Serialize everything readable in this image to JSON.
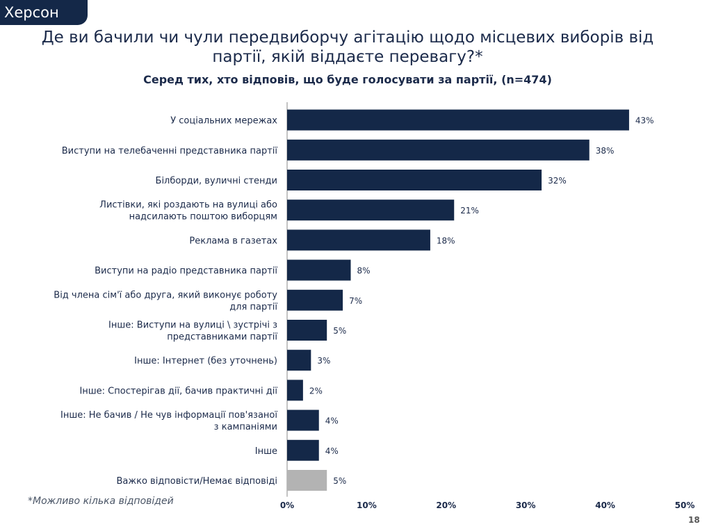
{
  "region": "Херсон",
  "title": "Де ви бачили чи чули передвиборчу агітацію щодо місцевих виборів від партії, якій віддаєте перевагу?*",
  "subtitle": "Серед тих, хто відповів, що буде голосувати за партії, (n=474)",
  "footnote": "*Можливо кілька відповідей",
  "page_number": "18",
  "colors": {
    "primary": "#142848",
    "secondary": "#b3b3b3"
  },
  "chart_data": {
    "type": "bar",
    "orientation": "horizontal",
    "categories": [
      "У соціальних мережах",
      "Виступи на телебаченні представника партії",
      "Білборди, вуличні стенди",
      "Листівки, які роздають на вулиці або надсилають поштою виборцям",
      "Реклама в газетах",
      "Виступи на радіо представника партії",
      "Від члена сім'ї або друга, який виконує роботу для партії",
      "Інше: Виступи на вулиці \\ зустрічі з представниками партії",
      "Інше: Інтернет (без уточнень)",
      "Інше: Спостерігав дії, бачив практичні дії",
      "Інше: Не бачив / Не чув інформації пов'язаної з кампаніями",
      "Інше",
      "Важко відповісти/Немає відповіді"
    ],
    "category_lines": [
      [
        "У соціальних мережах"
      ],
      [
        "Виступи на телебаченні представника партії"
      ],
      [
        "Білборди, вуличні стенди"
      ],
      [
        "Листівки, які роздають на вулиці або",
        "надсилають поштою виборцям"
      ],
      [
        "Реклама в газетах"
      ],
      [
        "Виступи на радіо представника партії"
      ],
      [
        "Від члена сім'ї або друга, який виконує роботу",
        "для партії"
      ],
      [
        "Інше: Виступи на вулиці \\ зустрічі з",
        "представниками партії"
      ],
      [
        "Інше: Інтернет (без уточнень)"
      ],
      [
        "Інше: Спостерігав дії, бачив практичні дії"
      ],
      [
        "Інше: Не бачив / Не чув інформації пов'язаної",
        "з кампаніями"
      ],
      [
        "Інше"
      ],
      [
        "Важко відповісти/Немає відповіді"
      ]
    ],
    "values": [
      43,
      38,
      32,
      21,
      18,
      8,
      7,
      5,
      3,
      2,
      4,
      4,
      5
    ],
    "value_labels": [
      "43%",
      "38%",
      "32%",
      "21%",
      "18%",
      "8%",
      "7%",
      "5%",
      "3%",
      "2%",
      "4%",
      "4%",
      "5%"
    ],
    "highlight_last_gray": true,
    "xlim": [
      0,
      50
    ],
    "xticks": [
      0,
      10,
      20,
      30,
      40,
      50
    ],
    "xtick_labels": [
      "0%",
      "10%",
      "20%",
      "30%",
      "40%",
      "50%"
    ],
    "grid": false,
    "legend": "none"
  }
}
